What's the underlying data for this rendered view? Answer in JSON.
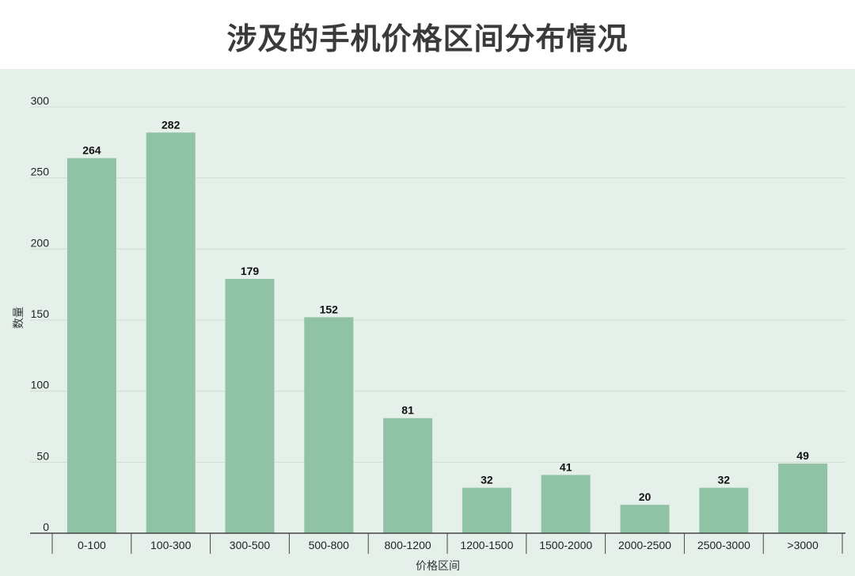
{
  "chart_data": {
    "type": "bar",
    "title": "涉及的手机价格区间分布情况",
    "xlabel": "价格区间",
    "ylabel": "数量",
    "categories": [
      "0-100",
      "100-300",
      "300-500",
      "500-800",
      "800-1200",
      "1200-1500",
      "1500-2000",
      "2000-2500",
      "2500-3000",
      ">3000"
    ],
    "values": [
      264,
      282,
      179,
      152,
      81,
      32,
      41,
      20,
      32,
      49
    ],
    "ylim": [
      0,
      300
    ],
    "yticks": [
      0,
      50,
      100,
      150,
      200,
      250,
      300
    ],
    "grid": true,
    "legend": "none",
    "data_labels": true
  },
  "colors": {
    "bar": "#90c2a6",
    "plot_background": "#e6f0ea",
    "gridline": "#cfdcd4",
    "axis": "#444444"
  }
}
